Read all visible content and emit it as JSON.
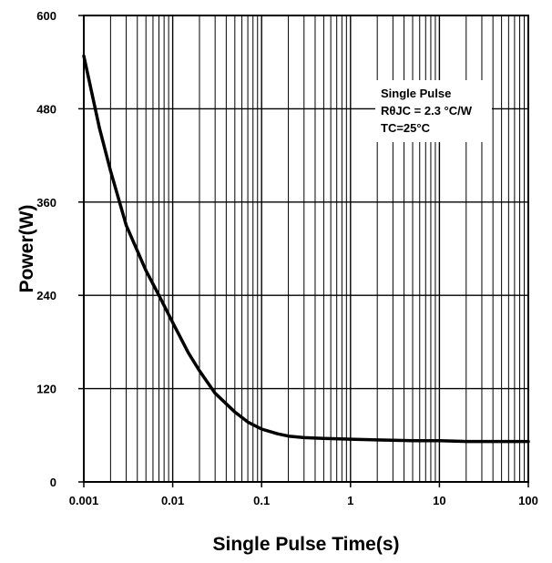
{
  "chart_data": {
    "type": "line",
    "title": "",
    "xlabel": "Single Pulse Time(s)",
    "ylabel": "Power(W)",
    "x_scale": "log",
    "xlim": [
      0.001,
      100
    ],
    "ylim": [
      0,
      600
    ],
    "grid": true,
    "x_ticks": [
      "0.001",
      "0.01",
      "0.1",
      "1",
      "10",
      "100"
    ],
    "y_ticks": [
      "0",
      "120",
      "240",
      "360",
      "480",
      "600"
    ],
    "annotation": {
      "lines": [
        "Single Pulse",
        "RθJC = 2.3 °C/W",
        "TC=25°C"
      ],
      "position": "top-right"
    },
    "series": [
      {
        "x": [
          0.001,
          0.0015,
          0.002,
          0.003,
          0.005,
          0.007,
          0.01,
          0.015,
          0.02,
          0.03,
          0.05,
          0.07,
          0.1,
          0.15,
          0.2,
          0.3,
          0.5,
          1,
          2,
          5,
          10,
          20,
          50,
          100
        ],
        "y": [
          548,
          455,
          400,
          330,
          272,
          240,
          205,
          166,
          143,
          114,
          90,
          77,
          68,
          62,
          59,
          57,
          56,
          55,
          54,
          53,
          53,
          52,
          52,
          52
        ]
      }
    ]
  }
}
